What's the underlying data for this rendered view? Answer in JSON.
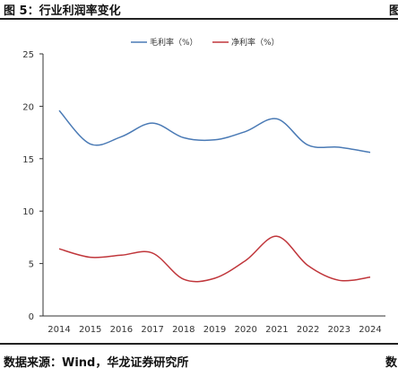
{
  "header": {
    "title": "图 5：行业利润率变化",
    "cut_text": "图"
  },
  "footer": {
    "source": "数据来源：Wind，华龙证券研究所",
    "cut_text": "数"
  },
  "chart_data": {
    "type": "line",
    "title": "",
    "xlabel": "",
    "ylabel": "",
    "categories": [
      "2014",
      "2015",
      "2016",
      "2017",
      "2018",
      "2019",
      "2020",
      "2021",
      "2022",
      "2023",
      "2024"
    ],
    "ylim": [
      0,
      25
    ],
    "yticks": [
      0,
      5,
      10,
      15,
      20,
      25
    ],
    "grid": false,
    "legend_position": "top",
    "series": [
      {
        "name": "毛利率（%）",
        "color": "#4a7ab5",
        "values": [
          19.6,
          16.4,
          17.1,
          18.4,
          17.0,
          16.8,
          17.6,
          18.8,
          16.3,
          16.1,
          15.6
        ]
      },
      {
        "name": "净利率（%）",
        "color": "#c0363b",
        "values": [
          6.4,
          5.6,
          5.8,
          6.0,
          3.5,
          3.6,
          5.3,
          7.6,
          4.8,
          3.4,
          3.7
        ]
      }
    ]
  }
}
